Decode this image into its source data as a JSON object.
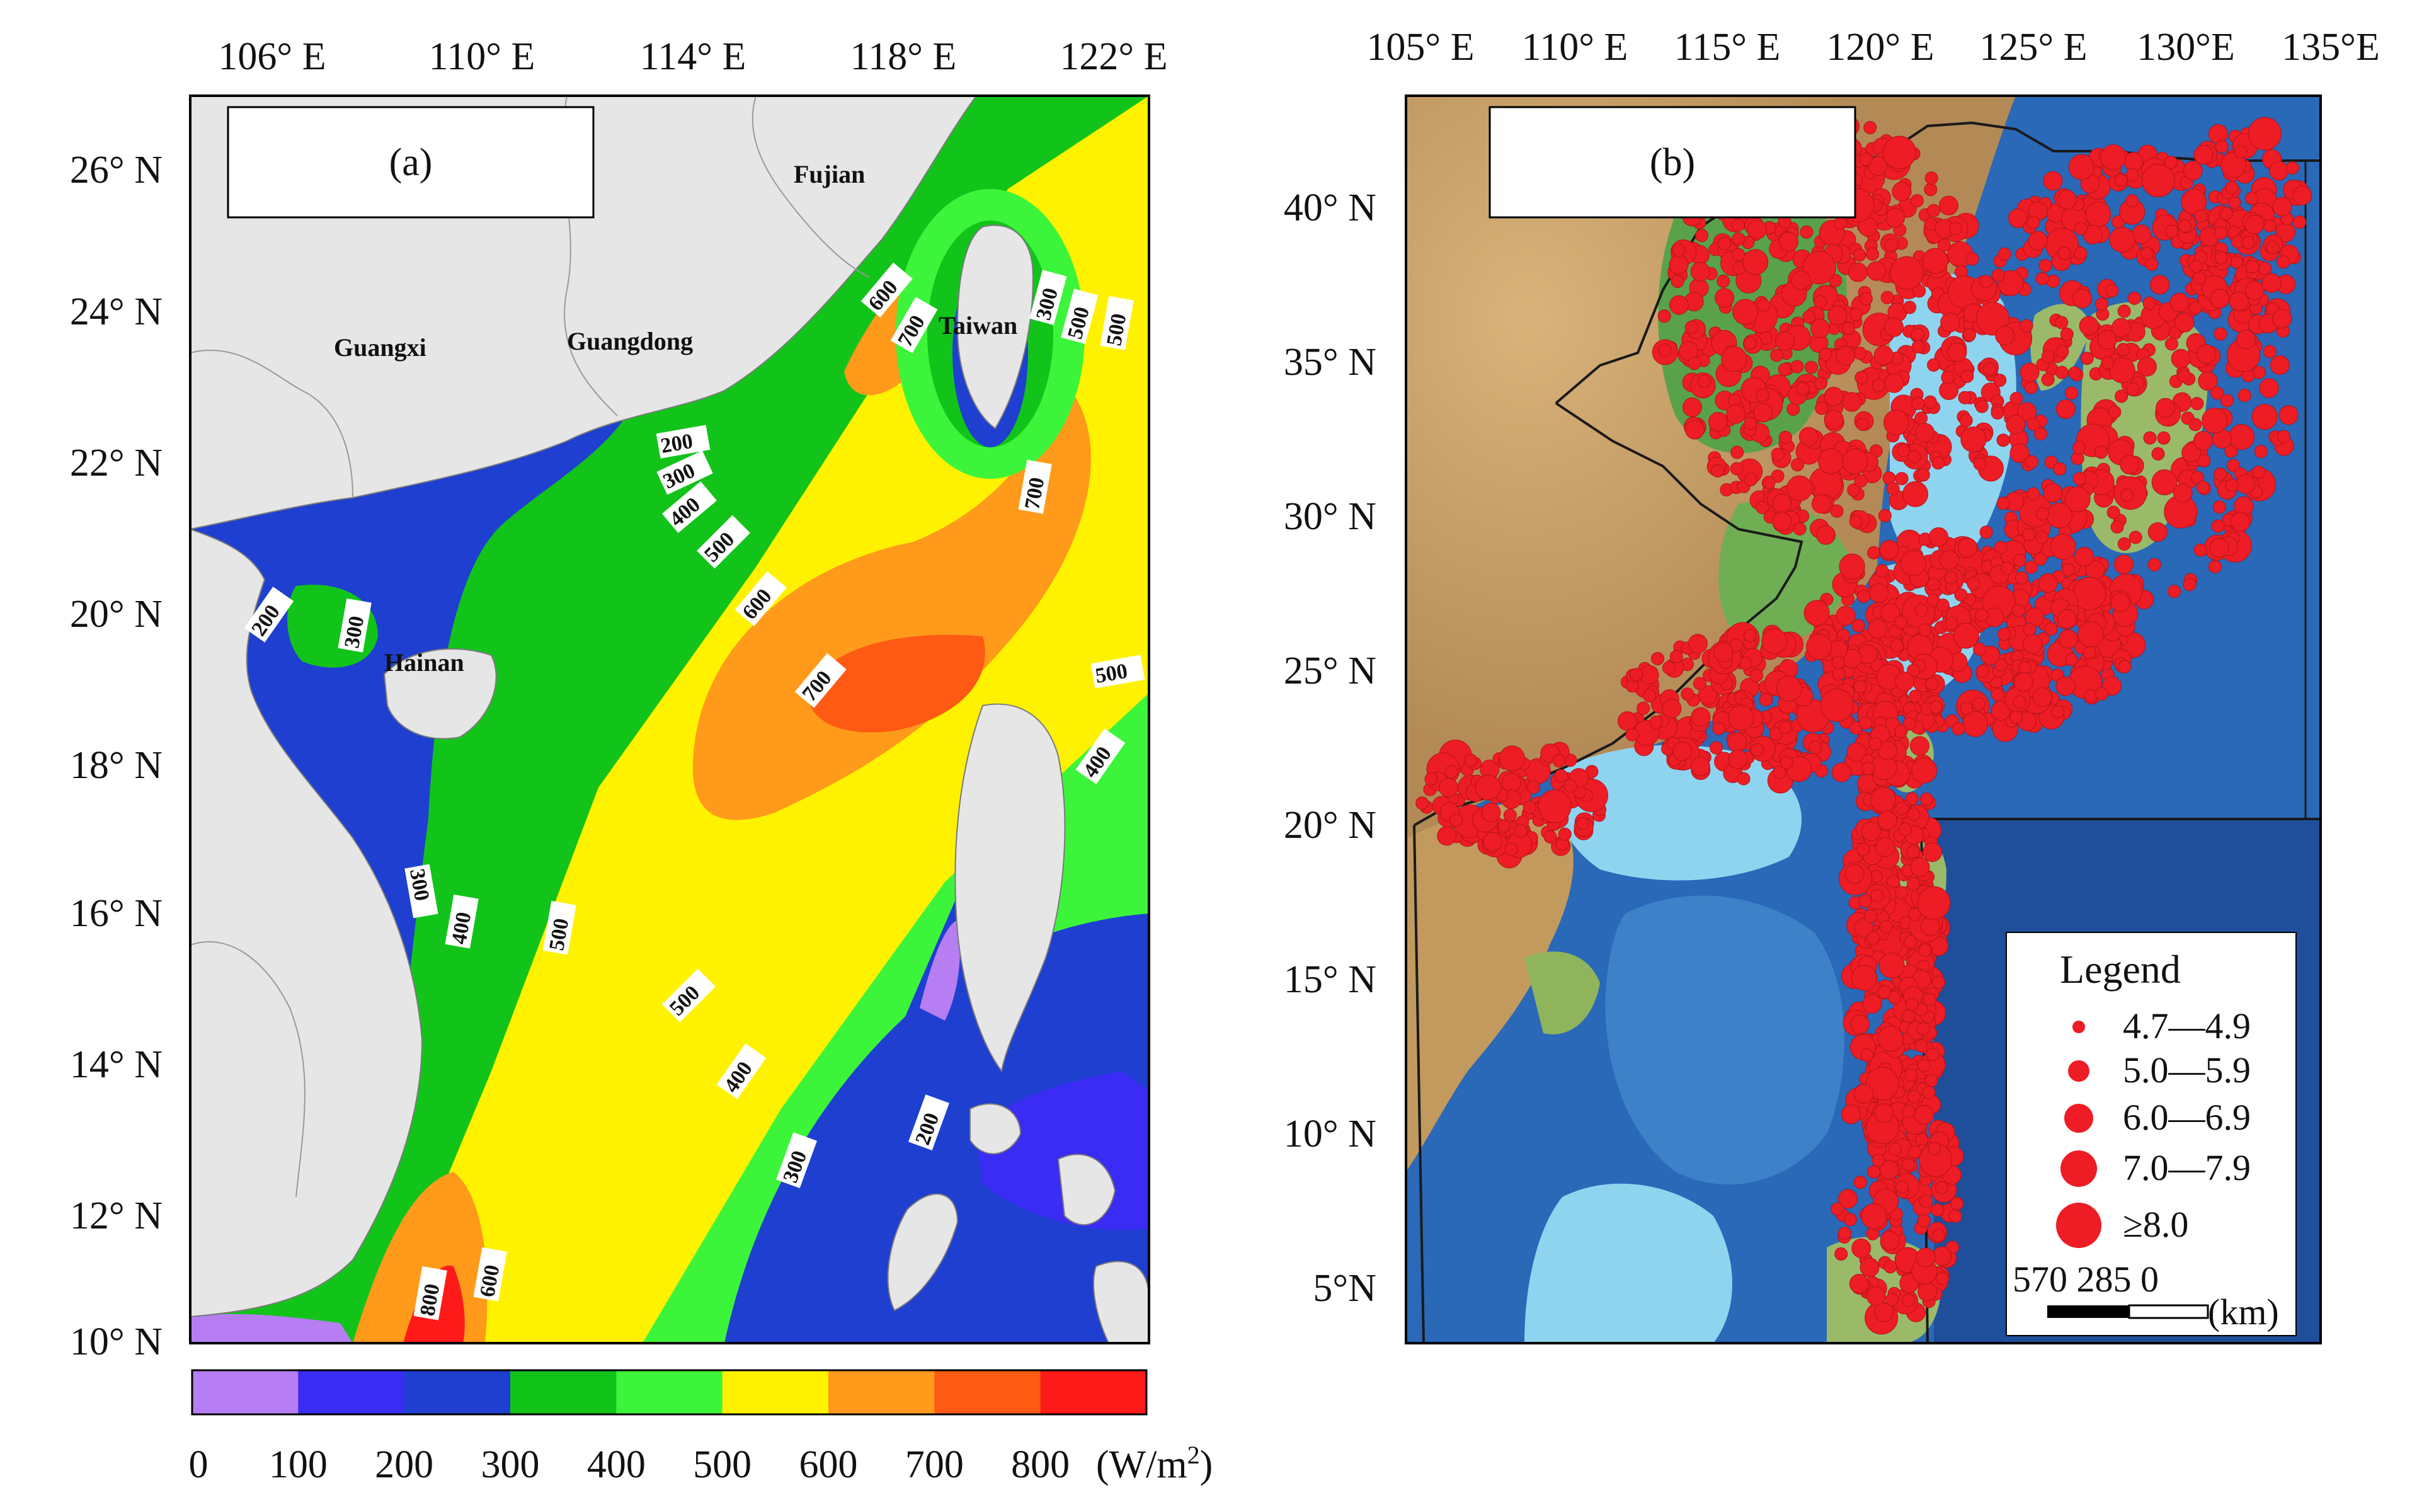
{
  "panel_a": {
    "tag": "(a)",
    "lon_labels": [
      "106° E",
      "110° E",
      "114° E",
      "118° E",
      "122° E"
    ],
    "lat_labels": [
      "26° N",
      "24° N",
      "22° N",
      "20° N",
      "18° N",
      "16° N",
      "14° N",
      "12° N",
      "10° N"
    ],
    "regions": [
      "Fujian",
      "Guangxi",
      "Guangdong",
      "Taiwan",
      "Hainan"
    ],
    "contour_labels": [
      "200",
      "300",
      "400",
      "500",
      "600",
      "700",
      "800"
    ],
    "colorbar": {
      "ticks": [
        "0",
        "100",
        "200",
        "300",
        "400",
        "500",
        "600",
        "700",
        "800"
      ],
      "unit_prefix": "(W/m",
      "unit_sup": "2",
      "unit_suffix": ")",
      "colors": [
        "#b67ef2",
        "#3a2cf4",
        "#1f3fd0",
        "#12c41a",
        "#3cf53a",
        "#fff200",
        "#ff9a1a",
        "#ff5a14",
        "#ff1a1a"
      ]
    }
  },
  "panel_b": {
    "tag": "(b)",
    "lon_labels": [
      "105° E",
      "110° E",
      "115° E",
      "120° E",
      "125° E",
      "130°E",
      "135°E"
    ],
    "lat_labels": [
      "40° N",
      "35° N",
      "30° N",
      "25° N",
      "20° N",
      "15° N",
      "10° N",
      "5°N"
    ],
    "legend": {
      "title": "Legend",
      "items": [
        "4.7—4.9",
        "5.0—5.9",
        "6.0—6.9",
        "7.0—7.9",
        "≥8.0"
      ],
      "scale_text": "570 285 0",
      "scale_unit": "(km)"
    },
    "marker_color": "#ee1c24"
  }
}
